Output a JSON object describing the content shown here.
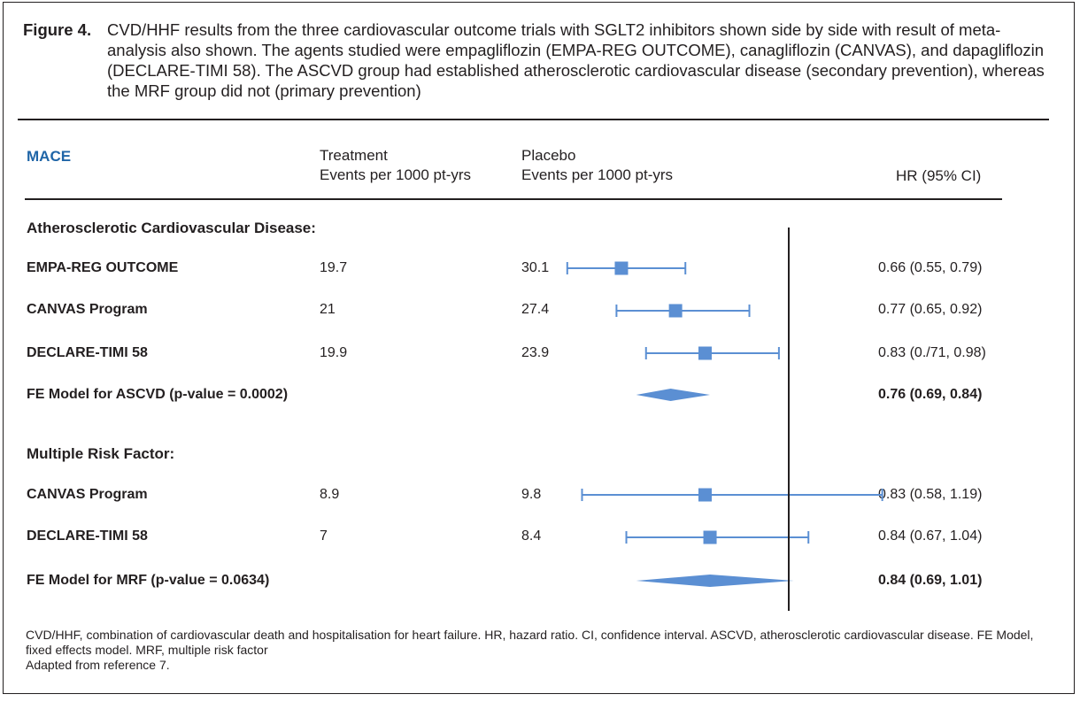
{
  "caption": {
    "label": "Figure 4.",
    "text": "CVD/HHF results from the three cardiovascular outcome trials with SGLT2 inhibitors shown side by side with result of meta-analysis also shown. The agents studied were empagliflozin (EMPA-REG OUTCOME), canagliflozin (CANVAS), and dapagliflozin (DECLARE-TIMI 58).  The ASCVD group had established atherosclerotic cardiovascular disease (secondary prevention), whereas the MRF group did not (primary prevention)"
  },
  "header": {
    "mace": "MACE",
    "treatment_line1": "Treatment",
    "treatment_line2": "Events per 1000 pt-yrs",
    "placebo_line1": "Placebo",
    "placebo_line2": "Events per 1000 pt-yrs",
    "hr": "HR (95% CI)"
  },
  "sections": {
    "ascvd": "Atherosclerotic Cardiovascular Disease:",
    "mrf": "Multiple Risk Factor:"
  },
  "rows": [
    {
      "name": "EMPA-REG OUTCOME",
      "treatment": "19.7",
      "placebo": "30.1",
      "hr_text": "0.66 (0.55, 0.79)",
      "bold": false
    },
    {
      "name": "CANVAS Program",
      "treatment": "21",
      "placebo": "27.4",
      "hr_text": "0.77 (0.65, 0.92)",
      "bold": false
    },
    {
      "name": "DECLARE-TIMI 58",
      "treatment": "19.9",
      "placebo": "23.9",
      "hr_text": "0.83 (0./71, 0.98)",
      "bold": false
    },
    {
      "name": "FE Model for ASCVD (p-value = 0.0002)",
      "treatment": "",
      "placebo": "",
      "hr_text": "0.76 (0.69, 0.84)",
      "bold": true
    },
    {
      "name": "CANVAS Program",
      "treatment": "8.9",
      "placebo": "9.8",
      "hr_text": "0.83 (0.58, 1.19)",
      "bold": false
    },
    {
      "name": "DECLARE-TIMI 58",
      "treatment": "7",
      "placebo": "8.4",
      "hr_text": "0.84 (0.67, 1.04)",
      "bold": false
    },
    {
      "name": "FE Model for MRF (p-value = 0.0634)",
      "treatment": "",
      "placebo": "",
      "hr_text": "0.84 (0.69, 1.01)",
      "bold": true
    }
  ],
  "footnote": {
    "line1": "CVD/HHF, combination of cardiovascular death and hospitalisation for heart failure. HR, hazard ratio.  CI, confidence interval. ASCVD, atherosclerotic cardiovascular disease. FE Model, fixed effects model. MRF, multiple risk factor",
    "line2": "Adapted from reference 7."
  },
  "chart_data": {
    "type": "forest",
    "reference_line": 1.0,
    "marker_color": "#5b8fd3",
    "series": [
      {
        "name": "EMPA-REG OUTCOME",
        "group": "Atherosclerotic Cardiovascular Disease:",
        "hr": 0.66,
        "lo": 0.55,
        "hi": 0.79,
        "kind": "study"
      },
      {
        "name": "CANVAS Program",
        "group": "Atherosclerotic Cardiovascular Disease:",
        "hr": 0.77,
        "lo": 0.65,
        "hi": 0.92,
        "kind": "study"
      },
      {
        "name": "DECLARE-TIMI 58",
        "group": "Atherosclerotic Cardiovascular Disease:",
        "hr": 0.83,
        "lo": 0.71,
        "hi": 0.98,
        "kind": "study"
      },
      {
        "name": "FE Model for ASCVD (p-value = 0.0002)",
        "group": "Atherosclerotic Cardiovascular Disease:",
        "hr": 0.76,
        "lo": 0.69,
        "hi": 0.84,
        "kind": "summary"
      },
      {
        "name": "CANVAS Program",
        "group": "Multiple Risk Factor:",
        "hr": 0.83,
        "lo": 0.58,
        "hi": 1.19,
        "kind": "study"
      },
      {
        "name": "DECLARE-TIMI 58",
        "group": "Multiple Risk Factor:",
        "hr": 0.84,
        "lo": 0.67,
        "hi": 1.04,
        "kind": "study"
      },
      {
        "name": "FE Model for MRF (p-value = 0.0634)",
        "group": "Multiple Risk Factor:",
        "hr": 0.84,
        "lo": 0.69,
        "hi": 1.01,
        "kind": "summary"
      }
    ]
  }
}
